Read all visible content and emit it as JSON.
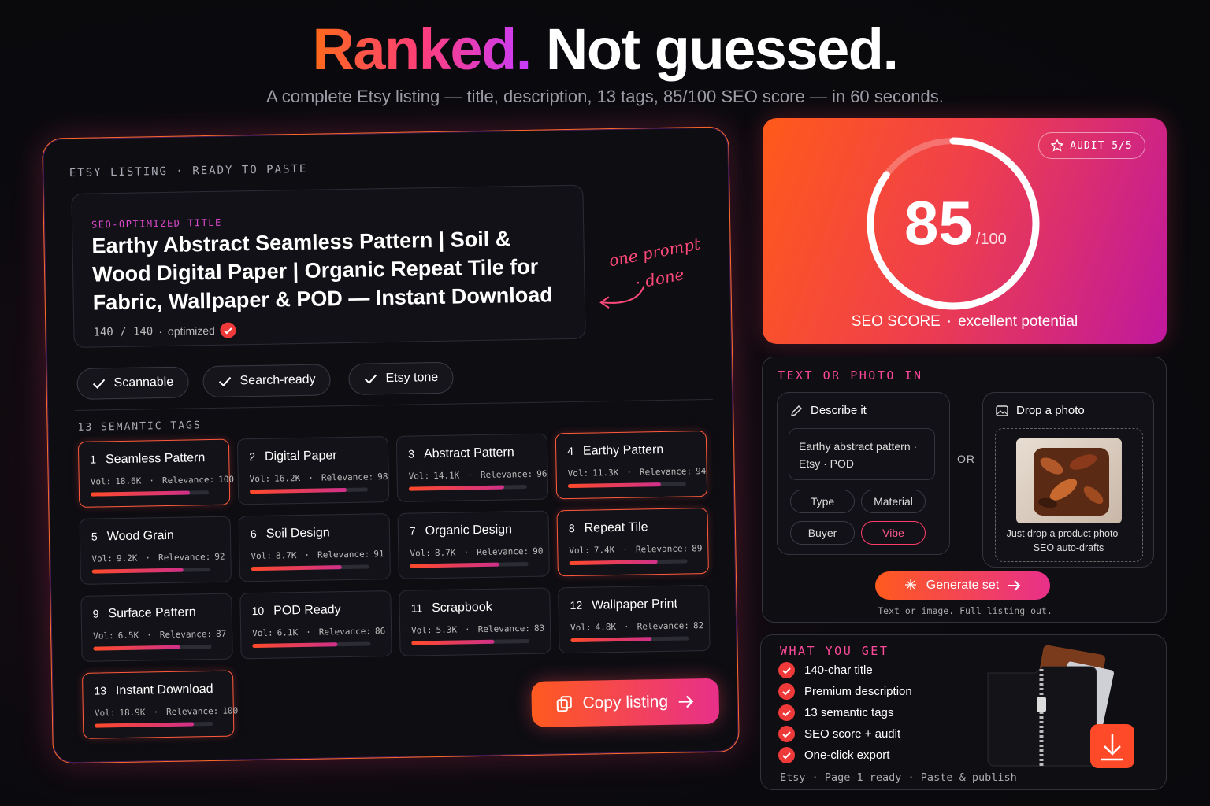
{
  "header": {
    "title_accent": "Ranked.",
    "title_rest": "Not guessed.",
    "subtitle": "A complete Etsy listing — title, description, 13 tags, 85/100 SEO score — in 60 seconds."
  },
  "listing": {
    "label": "ETSY LISTING · READY TO PASTE",
    "title_label": "SEO-OPTIMIZED TITLE",
    "title": "Earthy Abstract Seamless Pattern | Soil & Wood Digital Paper | Organic Repeat Tile for Fabric, Wallpaper & POD — Instant Download",
    "char_count": "140 / 140",
    "separator": "·",
    "status": "optimized",
    "annotation": "one prompt · done",
    "badges": [
      "Scannable",
      "Search-ready",
      "Etsy tone"
    ],
    "tags_label": "13 SEMANTIC TAGS",
    "vol_label": "Vol:",
    "relevance_label": "Relevance:",
    "tags": [
      {
        "rank": 1,
        "name": "Seamless Pattern",
        "vol": "18.6K",
        "relevance": 100,
        "featured": true
      },
      {
        "rank": 2,
        "name": "Digital Paper",
        "vol": "16.2K",
        "relevance": 98,
        "featured": false
      },
      {
        "rank": 3,
        "name": "Abstract Pattern",
        "vol": "14.1K",
        "relevance": 96,
        "featured": false
      },
      {
        "rank": 4,
        "name": "Earthy Pattern",
        "vol": "11.3K",
        "relevance": 94,
        "featured": true
      },
      {
        "rank": 5,
        "name": "Wood Grain",
        "vol": "9.2K",
        "relevance": 92,
        "featured": false
      },
      {
        "rank": 6,
        "name": "Soil Design",
        "vol": "8.7K",
        "relevance": 91,
        "featured": false
      },
      {
        "rank": 7,
        "name": "Organic Design",
        "vol": "8.7K",
        "relevance": 90,
        "featured": false
      },
      {
        "rank": 8,
        "name": "Repeat Tile",
        "vol": "7.4K",
        "relevance": 89,
        "featured": true
      },
      {
        "rank": 9,
        "name": "Surface Pattern",
        "vol": "6.5K",
        "relevance": 87,
        "featured": false
      },
      {
        "rank": 10,
        "name": "POD Ready",
        "vol": "6.1K",
        "relevance": 86,
        "featured": false
      },
      {
        "rank": 11,
        "name": "Scrapbook",
        "vol": "5.3K",
        "relevance": 83,
        "featured": false
      },
      {
        "rank": 12,
        "name": "Wallpaper Print",
        "vol": "4.8K",
        "relevance": 82,
        "featured": false
      },
      {
        "rank": 13,
        "name": "Instant Download",
        "vol": "18.9K",
        "relevance": 100,
        "featured": true
      }
    ],
    "copy_button": "Copy listing"
  },
  "score_card": {
    "badge": "AUDIT 5/5",
    "score": 85,
    "score_max": "/100",
    "caption_label": "SEO SCORE",
    "separator": "·",
    "caption_value": "excellent potential"
  },
  "input_card": {
    "title": "TEXT OR PHOTO IN",
    "describe_title": "Describe it",
    "describe_text": "Earthy abstract pattern · Etsy · POD",
    "chips": [
      "Type",
      "Material",
      "Buyer",
      "Vibe"
    ],
    "active_chip": "Vibe",
    "or": "OR",
    "photo_title": "Drop a photo",
    "photo_hint": "Just drop a product photo — SEO auto-drafts",
    "button": "Generate set",
    "note": "Text or image. Full listing out."
  },
  "benefits": {
    "title": "WHAT YOU GET",
    "items": [
      "140-char title",
      "Premium description",
      "13 semantic tags",
      "SEO score + audit",
      "One-click export"
    ],
    "footer": "Etsy · Page-1 ready · Paste & publish"
  }
}
